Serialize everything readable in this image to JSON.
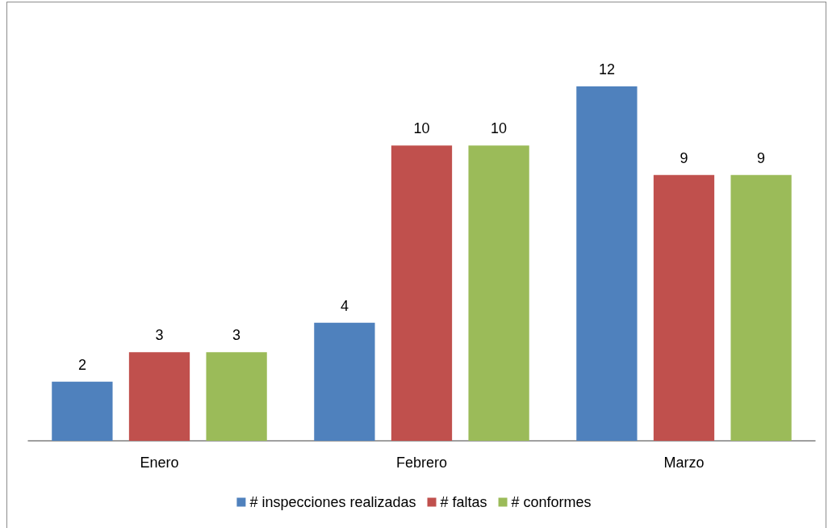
{
  "chart_data": {
    "type": "bar",
    "categories": [
      "Enero",
      "Febrero",
      "Marzo"
    ],
    "series": [
      {
        "name": "# inspecciones realizadas",
        "color": "#4f81bd",
        "values": [
          2,
          4,
          12
        ]
      },
      {
        "name": "# faltas",
        "color": "#c0504d",
        "values": [
          3,
          10,
          9
        ]
      },
      {
        "name": "# conformes",
        "color": "#9bbb59",
        "values": [
          3,
          10,
          9
        ]
      }
    ],
    "data_labels": true,
    "legend": "bottom"
  }
}
